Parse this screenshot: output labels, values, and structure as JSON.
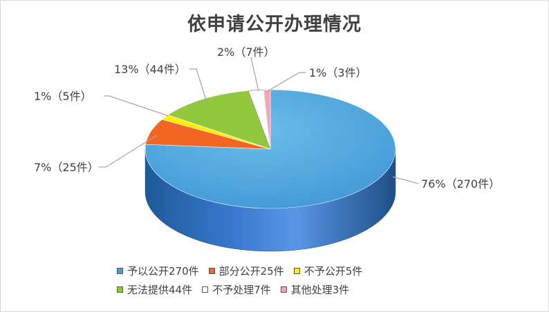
{
  "chart_data": {
    "type": "pie",
    "title": "依申请公开办理情况",
    "slices": [
      {
        "name": "予以公开270件",
        "value": 270,
        "percent": 76,
        "label": "76%（270件）",
        "color": "#4a9fd8"
      },
      {
        "name": "部分公开25件",
        "value": 25,
        "percent": 7,
        "label": "7%（25件）",
        "color": "#f26522"
      },
      {
        "name": "不予公开5件",
        "value": 5,
        "percent": 1,
        "label": "1%（5件）",
        "color": "#ffee00"
      },
      {
        "name": "无法提供44件",
        "value": 44,
        "percent": 13,
        "label": "13%（44件）",
        "color": "#92c83e"
      },
      {
        "name": "不予处理7件",
        "value": 7,
        "percent": 2,
        "label": "2%（7件）",
        "color": "#ffffff"
      },
      {
        "name": "其他处理3件",
        "value": 3,
        "percent": 1,
        "label": "1%（3件）",
        "color": "#f7a3b5"
      }
    ],
    "legend_position": "bottom"
  }
}
